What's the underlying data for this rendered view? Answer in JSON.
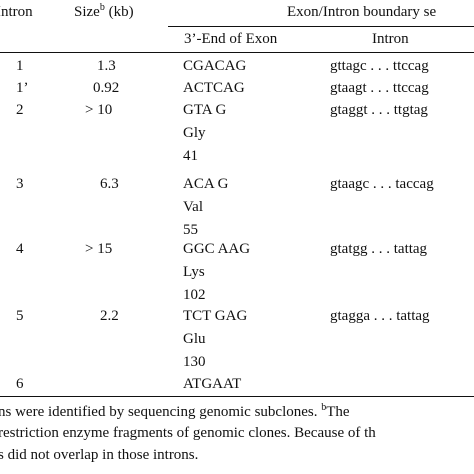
{
  "header": {
    "intron_col": "Intron",
    "size_col_text": "Size",
    "size_col_sup": "b",
    "size_col_unit": " (kb)",
    "boundary_group": "Exon/Intron boundary se",
    "exon_end_col": "3’-End of Exon",
    "intron_seq_col": "Intron"
  },
  "rows": [
    {
      "intron": "1",
      "size": "1.3",
      "exon": [
        "CGACAG"
      ],
      "seq": "gttagc . . . ttccag"
    },
    {
      "intron": "1’",
      "size": "0.92",
      "exon": [
        "ACTCAG"
      ],
      "seq": "gtaagt . . . ttccag"
    },
    {
      "intron": "2",
      "size": "> 10",
      "exon": [
        "GTA G",
        "Gly",
        "41"
      ],
      "seq": "gtaggt . . . ttgtag"
    },
    {
      "intron": "3",
      "size": "6.3",
      "exon": [
        "ACA G",
        "Val",
        "55"
      ],
      "seq": "gtaagc . . . taccag"
    },
    {
      "intron": "4",
      "size": "> 15",
      "exon": [
        "GGC AAG",
        "Lys",
        "102"
      ],
      "seq": "gtatgg . . . tattag"
    },
    {
      "intron": "5",
      "size": "2.2",
      "exon": [
        "TCT GAG",
        "Glu",
        "130"
      ],
      "seq": "gtagga . . . tattag"
    },
    {
      "intron": "6",
      "size": "",
      "exon": [
        "ATGAAT"
      ],
      "seq": ""
    }
  ],
  "footnote": {
    "line1_text": "ns were identified by sequencing genomic subclones.",
    "line1_sup": "b",
    "line1_tail": "The",
    "line2": "restriction enzyme fragments of genomic clones. Because of th",
    "line3": "s did not overlap in those introns."
  }
}
